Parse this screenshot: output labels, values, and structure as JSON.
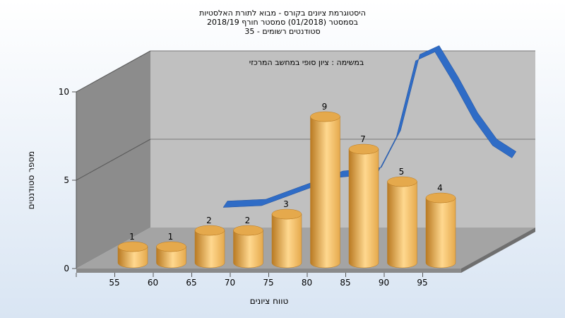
{
  "chart_data": {
    "type": "bar",
    "title_lines": [
      "היסטוגרמת ציונים בקורס - מבוא לתורת האלסטיות",
      "בסמסטר  (01/2018)  סמסטר חורף 2018/19",
      "סטודנטים רשומים - 35"
    ],
    "subtitle": "במשימה : ציון סופי במחשב המרכזי",
    "xlabel": "טווח ציונים",
    "ylabel": "מספר סטודנטים",
    "categories": [
      "55",
      "60",
      "65",
      "70",
      "75",
      "80",
      "85",
      "90",
      "95"
    ],
    "values": [
      1,
      1,
      2,
      2,
      3,
      9,
      7,
      5,
      4
    ],
    "data_labels": [
      "1",
      "1",
      "2",
      "2",
      "3",
      "9",
      "7",
      "5",
      "4"
    ],
    "y_ticks": [
      "0",
      "5",
      "10"
    ],
    "ylim": [
      0,
      10
    ],
    "x_tick_labels": [
      "55",
      "60",
      "65",
      "70",
      "75",
      "80",
      "85",
      "90",
      "95"
    ],
    "curve": {
      "x": [
        60,
        65,
        70,
        75,
        80,
        82.5,
        85,
        87.5,
        90,
        92.5,
        95,
        97.5
      ],
      "y": [
        1.5,
        1.6,
        2.4,
        3.2,
        3.4,
        5.5,
        9.8,
        10.3,
        8.5,
        6.5,
        5,
        4.3
      ]
    },
    "colors": {
      "bar": "#e5a94c",
      "bar_light": "#ffd88f",
      "bar_dark": "#b97a22",
      "curve": "#2f6cc6",
      "back_wall": "#c0c0c0",
      "side_wall": "#8c8c8c",
      "floor": "#a4a4a4"
    },
    "grid": true
  }
}
